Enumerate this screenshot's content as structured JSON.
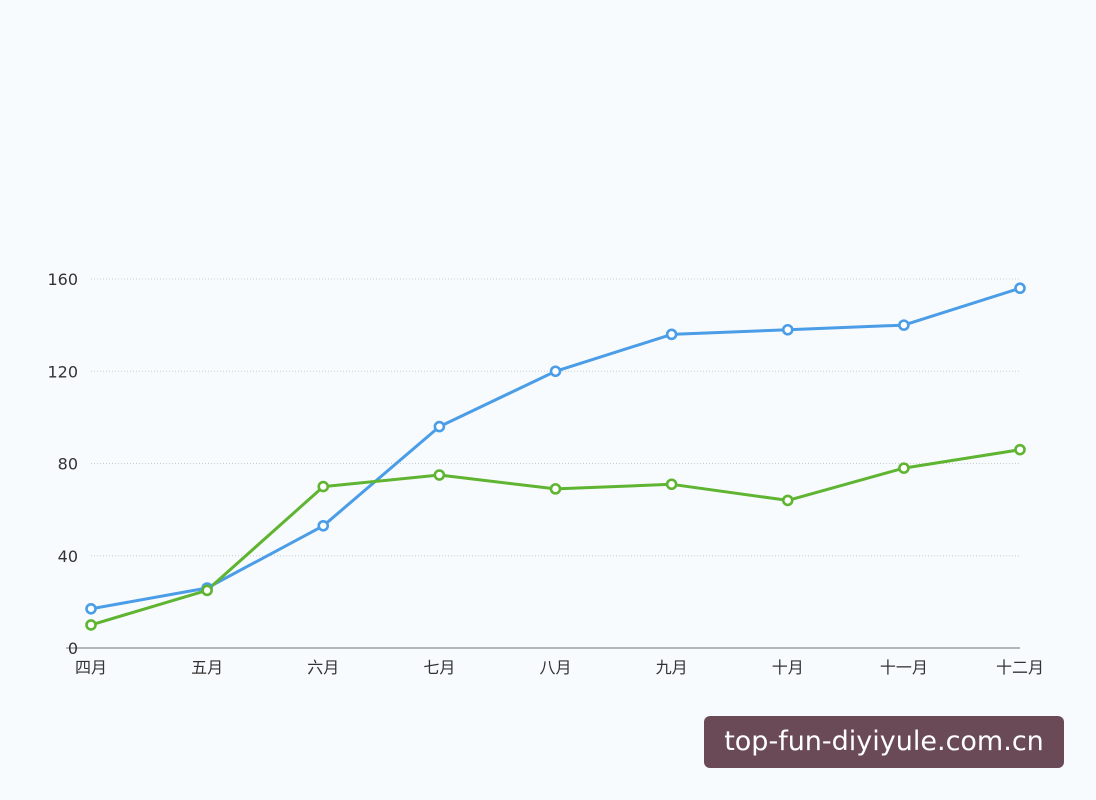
{
  "chart_data": {
    "type": "line",
    "title": "",
    "xlabel": "",
    "ylabel": "",
    "categories": [
      "四月",
      "五月",
      "六月",
      "七月",
      "八月",
      "九月",
      "十月",
      "十一月",
      "十二月"
    ],
    "ylim": [
      0,
      160
    ],
    "yticks": [
      "0",
      "40",
      "80",
      "120",
      "160"
    ],
    "grid": true,
    "legend": "none",
    "series": [
      {
        "color": "#4a9de6",
        "values": [
          17,
          26,
          53,
          96,
          120,
          136,
          138,
          140,
          156
        ]
      },
      {
        "color": "#5fb431",
        "values": [
          10,
          25,
          70,
          75,
          69,
          71,
          64,
          78,
          86
        ]
      }
    ]
  },
  "watermark": {
    "text": "top-fun-diyiyule.com.cn"
  }
}
